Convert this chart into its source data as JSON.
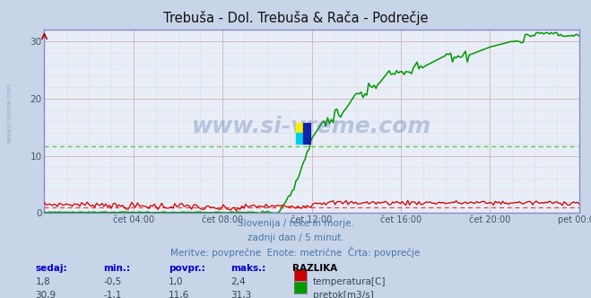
{
  "title": "Trebuša - Dol. Trebuša & Rača - Podrečje",
  "background_color": "#c8d4e8",
  "plot_bg_color": "#e8eef8",
  "grid_major_color": "#d8b8b8",
  "grid_minor_color": "#e8d8d8",
  "axis_color": "#8888cc",
  "xlim": [
    0,
    24
  ],
  "ylim": [
    0,
    32
  ],
  "yticks": [
    0,
    10,
    20,
    30
  ],
  "xtick_positions": [
    4,
    8,
    12,
    16,
    20,
    24
  ],
  "xtick_labels": [
    "čet 04:00",
    "čet 08:00",
    "čet 12:00",
    "čet 16:00",
    "čet 20:00",
    "pet 00:00"
  ],
  "temp_avg": 1.0,
  "flow_avg": 11.6,
  "temp_color": "#cc0000",
  "flow_color": "#009900",
  "temp_avg_color": "#ee4444",
  "flow_avg_color": "#44cc44",
  "watermark": "www.si-vreme.com",
  "watermark_color": "#4466aa",
  "side_watermark_color": "#8899bb",
  "subtitle_lines": [
    "Slovenija / reke in morje.",
    "zadnji dan / 5 minut.",
    "Meritve: povprečne  Enote: metrične  Črta: povprečje"
  ],
  "subtitle_color": "#4477aa",
  "table_header_color": "#0000cc",
  "table_header_bold": true,
  "table_data_color": "#334455",
  "razlika_color": "#000000",
  "table_headers": [
    "sedaj:",
    "min.:",
    "povpr.:",
    "maks.:",
    "RAZLIKA"
  ],
  "row1": [
    "1,8",
    "-0,5",
    "1,0",
    "2,4"
  ],
  "row2": [
    "30,9",
    "-1,1",
    "11,6",
    "31,3"
  ],
  "legend1_color": "#cc0000",
  "legend2_color": "#009900",
  "legend1": "temperatura[C]",
  "legend2": "pretok[m3/s]",
  "figsize": [
    6.59,
    3.32
  ],
  "dpi": 100
}
